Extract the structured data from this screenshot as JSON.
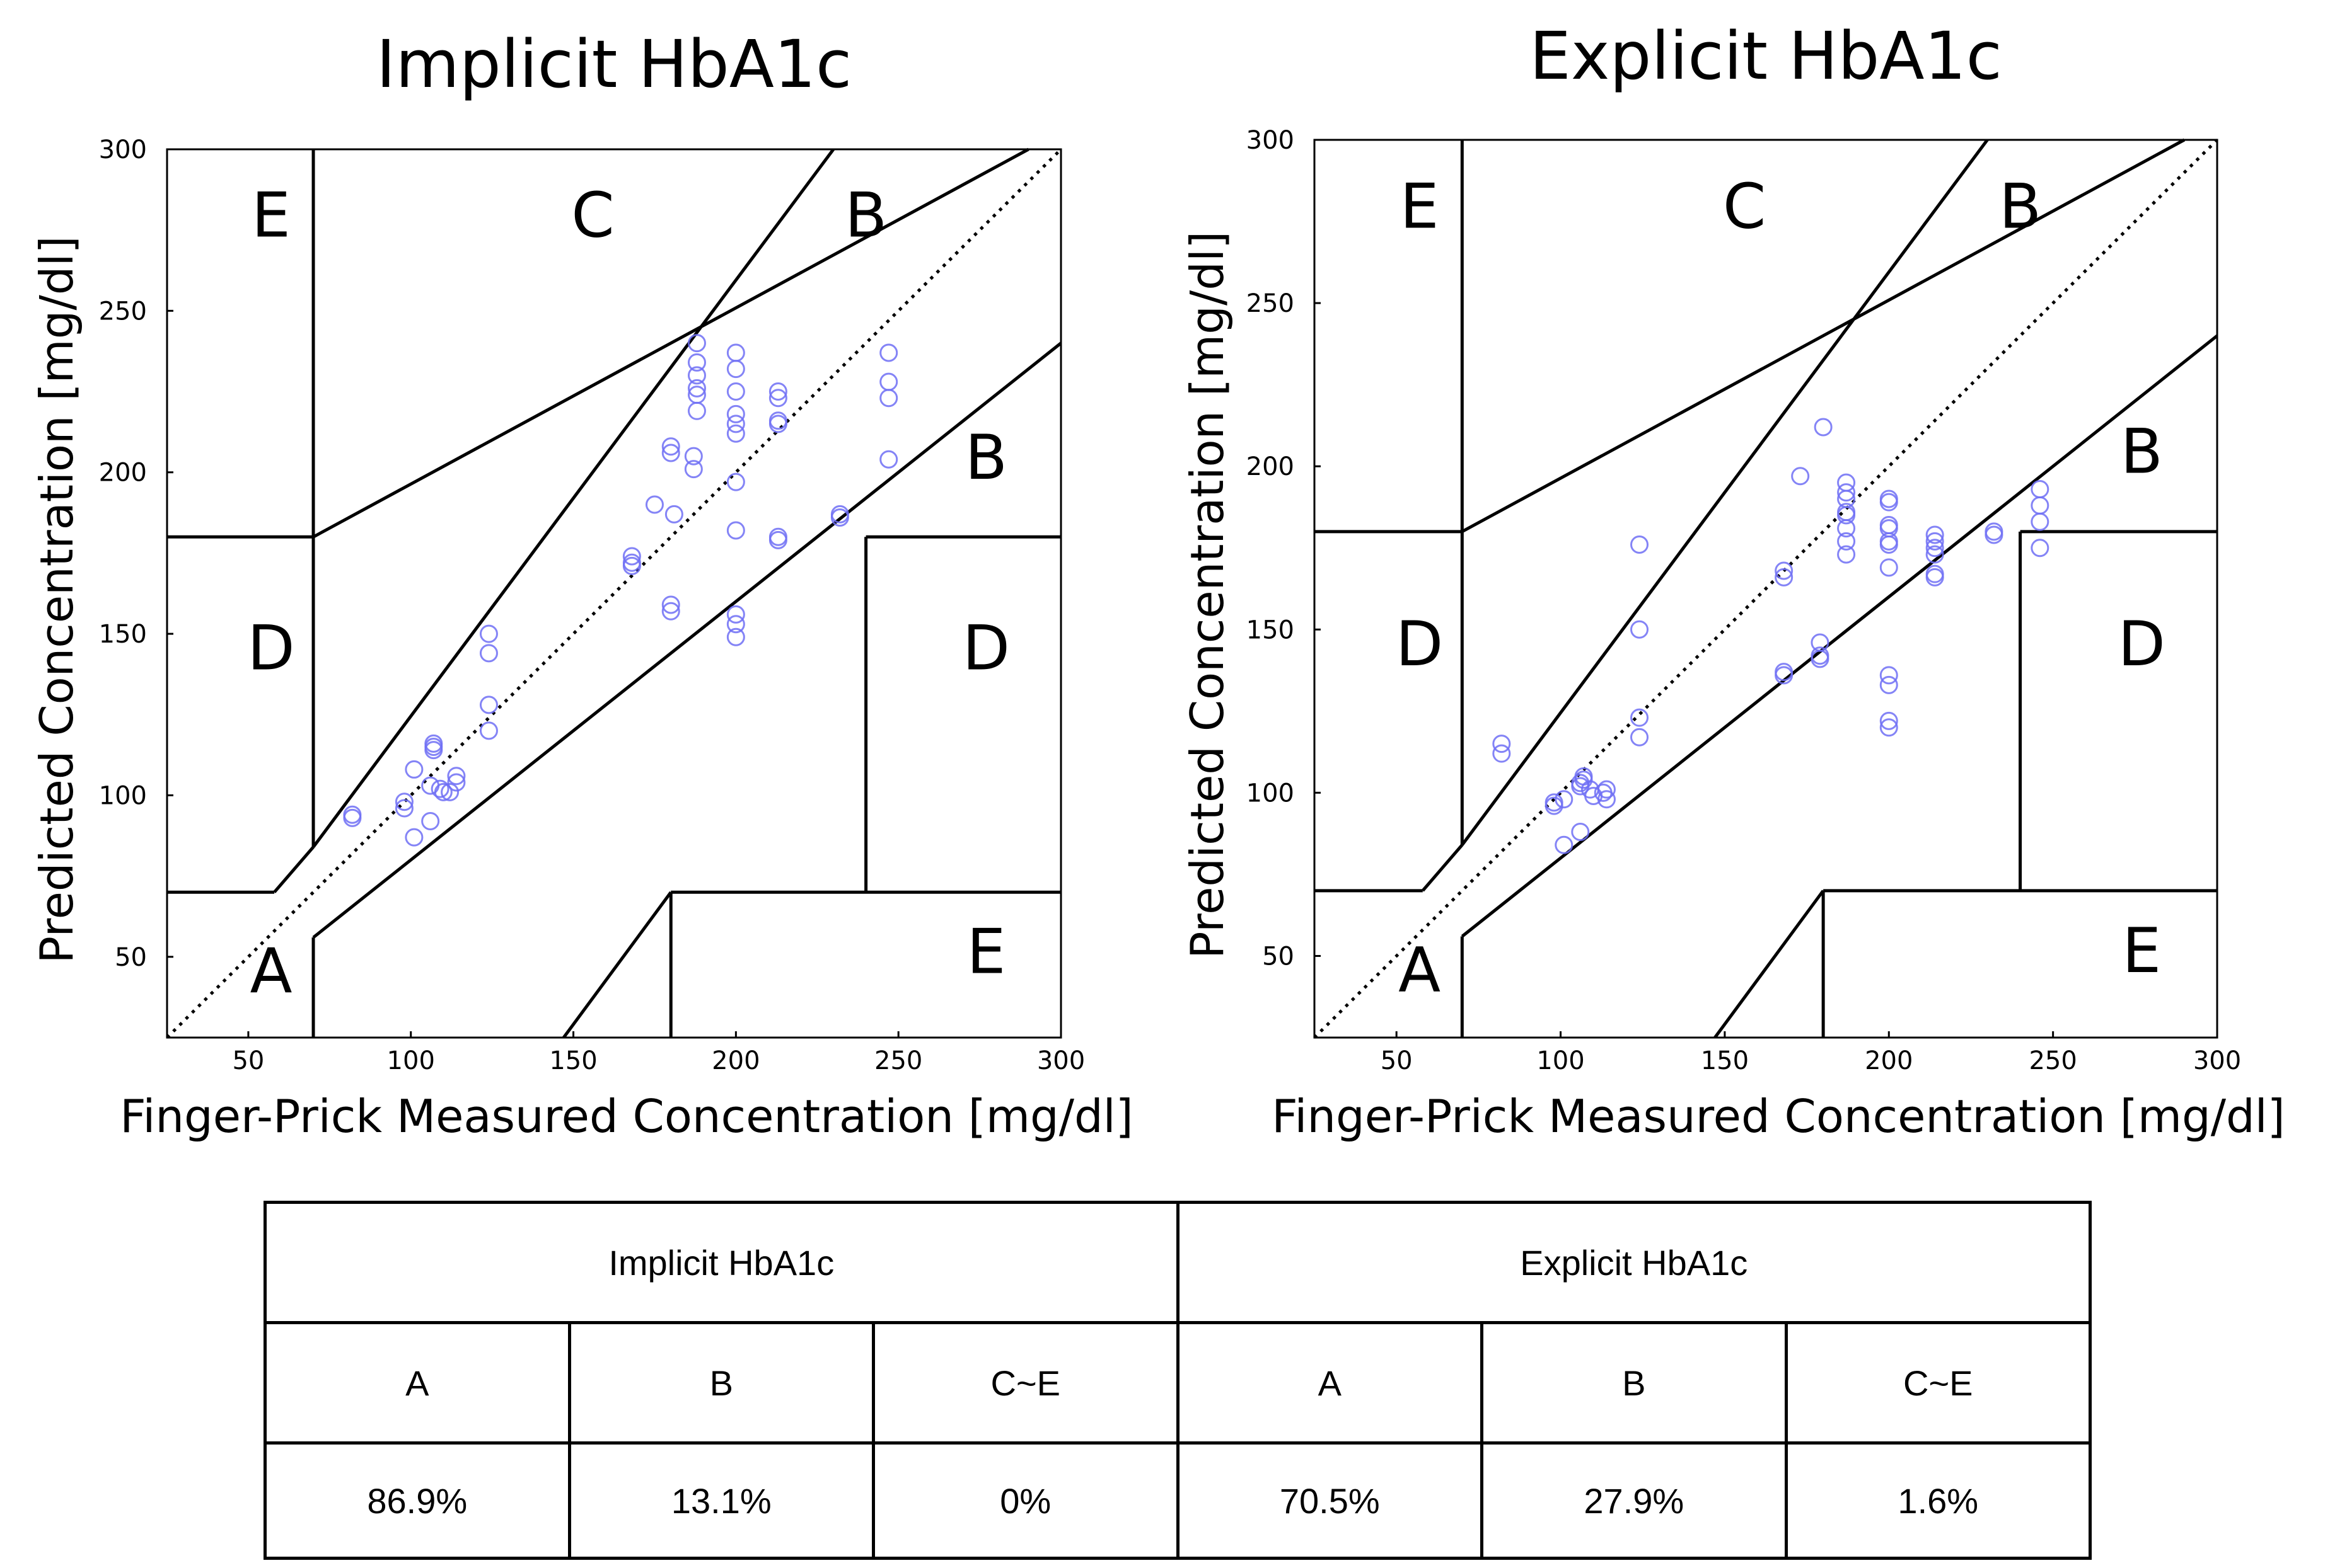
{
  "chart_data": [
    {
      "type": "scatter",
      "title": "Implicit HbA1c",
      "xlabel": "Finger-Prick Measured Concentration [mg/dl]",
      "ylabel": "Predicted Concentration [mg/dl]",
      "xlim": [
        25,
        300
      ],
      "ylim": [
        25,
        300
      ],
      "xticks": [
        50,
        100,
        150,
        200,
        250,
        300
      ],
      "yticks": [
        50,
        100,
        150,
        200,
        250,
        300
      ],
      "zone_labels": [
        {
          "text": "E",
          "x": 57,
          "y": 280
        },
        {
          "text": "C",
          "x": 156,
          "y": 280
        },
        {
          "text": "B",
          "x": 240,
          "y": 280
        },
        {
          "text": "B",
          "x": 277,
          "y": 205
        },
        {
          "text": "D",
          "x": 57,
          "y": 146
        },
        {
          "text": "D",
          "x": 277,
          "y": 146
        },
        {
          "text": "A",
          "x": 57,
          "y": 46
        },
        {
          "text": "E",
          "x": 277,
          "y": 52
        }
      ],
      "points": [
        [
          82,
          93
        ],
        [
          82,
          94
        ],
        [
          98,
          96
        ],
        [
          98,
          98
        ],
        [
          101,
          87
        ],
        [
          101,
          108
        ],
        [
          106,
          92
        ],
        [
          106,
          103
        ],
        [
          107,
          114
        ],
        [
          107,
          115
        ],
        [
          107,
          116
        ],
        [
          109,
          102
        ],
        [
          110,
          101
        ],
        [
          112,
          101
        ],
        [
          114,
          104
        ],
        [
          114,
          106
        ],
        [
          124,
          120
        ],
        [
          124,
          128
        ],
        [
          124,
          144
        ],
        [
          124,
          150
        ],
        [
          168,
          171
        ],
        [
          168,
          172
        ],
        [
          168,
          174
        ],
        [
          175,
          190
        ],
        [
          180,
          157
        ],
        [
          180,
          159
        ],
        [
          180,
          206
        ],
        [
          180,
          208
        ],
        [
          181,
          187
        ],
        [
          187,
          201
        ],
        [
          187,
          205
        ],
        [
          188,
          219
        ],
        [
          188,
          224
        ],
        [
          188,
          226
        ],
        [
          188,
          230
        ],
        [
          188,
          234
        ],
        [
          188,
          240
        ],
        [
          200,
          149
        ],
        [
          200,
          153
        ],
        [
          200,
          156
        ],
        [
          200,
          182
        ],
        [
          200,
          197
        ],
        [
          200,
          212
        ],
        [
          200,
          215
        ],
        [
          200,
          218
        ],
        [
          200,
          225
        ],
        [
          200,
          232
        ],
        [
          200,
          237
        ],
        [
          213,
          179
        ],
        [
          213,
          180
        ],
        [
          213,
          215
        ],
        [
          213,
          216
        ],
        [
          213,
          223
        ],
        [
          213,
          225
        ],
        [
          232,
          186
        ],
        [
          232,
          187
        ],
        [
          247,
          204
        ],
        [
          247,
          223
        ],
        [
          247,
          228
        ],
        [
          247,
          237
        ]
      ]
    },
    {
      "type": "scatter",
      "title": "Explicit HbA1c",
      "xlabel": "Finger-Prick Measured Concentration [mg/dl]",
      "ylabel": "Predicted Concentration [mg/dl]",
      "xlim": [
        25,
        300
      ],
      "ylim": [
        25,
        300
      ],
      "xticks": [
        50,
        100,
        150,
        200,
        250,
        300
      ],
      "yticks": [
        50,
        100,
        150,
        200,
        250,
        300
      ],
      "zone_labels": [
        {
          "text": "E",
          "x": 57,
          "y": 280
        },
        {
          "text": "C",
          "x": 156,
          "y": 280
        },
        {
          "text": "B",
          "x": 240,
          "y": 280
        },
        {
          "text": "B",
          "x": 277,
          "y": 205
        },
        {
          "text": "D",
          "x": 57,
          "y": 146
        },
        {
          "text": "D",
          "x": 277,
          "y": 146
        },
        {
          "text": "A",
          "x": 57,
          "y": 46
        },
        {
          "text": "E",
          "x": 277,
          "y": 52
        }
      ],
      "points": [
        [
          82,
          112
        ],
        [
          82,
          115
        ],
        [
          98,
          96
        ],
        [
          98,
          97
        ],
        [
          101,
          84
        ],
        [
          101,
          98
        ],
        [
          106,
          88
        ],
        [
          106,
          102
        ],
        [
          106,
          103
        ],
        [
          107,
          104
        ],
        [
          107,
          105
        ],
        [
          109,
          101
        ],
        [
          110,
          99
        ],
        [
          113,
          100
        ],
        [
          114,
          98
        ],
        [
          114,
          101
        ],
        [
          124,
          117
        ],
        [
          124,
          123
        ],
        [
          124,
          150
        ],
        [
          124,
          176
        ],
        [
          168,
          136
        ],
        [
          168,
          137
        ],
        [
          168,
          166
        ],
        [
          168,
          168
        ],
        [
          173,
          197
        ],
        [
          179,
          141
        ],
        [
          179,
          142
        ],
        [
          179,
          146
        ],
        [
          180,
          212
        ],
        [
          187,
          173
        ],
        [
          187,
          177
        ],
        [
          187,
          181
        ],
        [
          187,
          185
        ],
        [
          187,
          186
        ],
        [
          187,
          190
        ],
        [
          187,
          192
        ],
        [
          187,
          195
        ],
        [
          200,
          120
        ],
        [
          200,
          122
        ],
        [
          200,
          133
        ],
        [
          200,
          136
        ],
        [
          200,
          169
        ],
        [
          200,
          176
        ],
        [
          200,
          177
        ],
        [
          200,
          181
        ],
        [
          200,
          182
        ],
        [
          200,
          189
        ],
        [
          200,
          190
        ],
        [
          214,
          166
        ],
        [
          214,
          167
        ],
        [
          214,
          173
        ],
        [
          214,
          175
        ],
        [
          214,
          177
        ],
        [
          214,
          179
        ],
        [
          232,
          179
        ],
        [
          232,
          180
        ],
        [
          246,
          175
        ],
        [
          246,
          183
        ],
        [
          246,
          188
        ],
        [
          246,
          193
        ]
      ]
    }
  ],
  "table": {
    "groups": [
      "Implicit HbA1c",
      "Explicit HbA1c"
    ],
    "zones": [
      "A",
      "B",
      "C~E",
      "A",
      "B",
      "C~E"
    ],
    "values": [
      "86.9%",
      "13.1%",
      "0%",
      "70.5%",
      "27.9%",
      "1.6%"
    ]
  },
  "colors": {
    "marker": "#6f6ff5",
    "lines": "#000000"
  }
}
